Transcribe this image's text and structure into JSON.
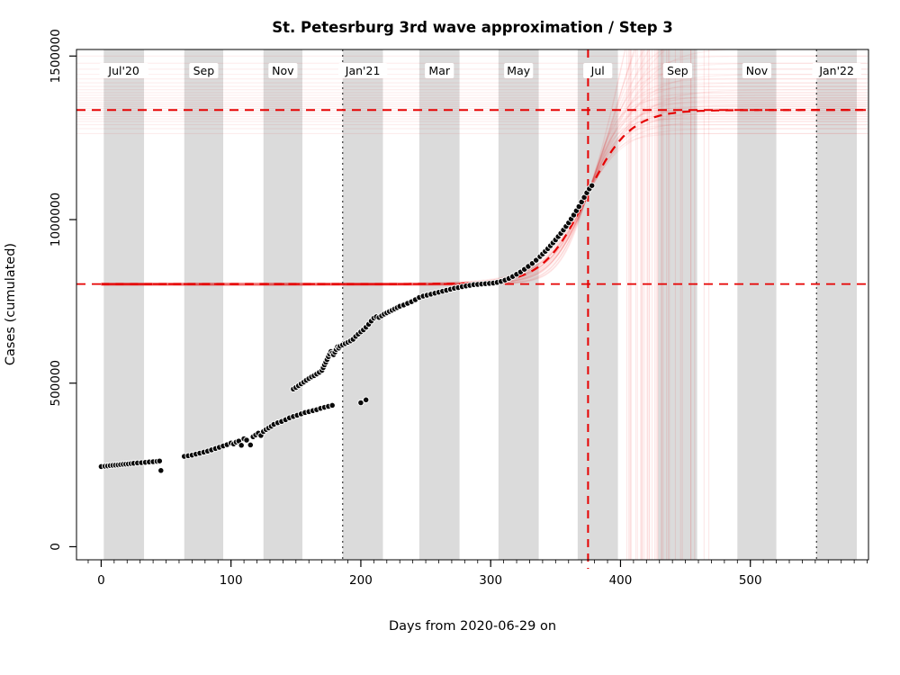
{
  "chart_data": {
    "type": "scatter",
    "title": "St. Petesrburg 3rd wave approximation / Step 3",
    "xlabel": "Days from 2020-06-29 on",
    "ylabel": "Cases (cumulated)",
    "xlim": [
      -19,
      591
    ],
    "ylim": [
      -40000,
      1520000
    ],
    "x_ticks": [
      0,
      100,
      200,
      300,
      400,
      500
    ],
    "x_minor_step": 10,
    "y_ticks": [
      0,
      500000,
      1000000,
      1500000
    ],
    "grid": false,
    "legend": "none",
    "month_bands": [
      {
        "label": "Jul'20",
        "start": 2,
        "end": 33
      },
      {
        "label": "Sep",
        "start": 64,
        "end": 94
      },
      {
        "label": "Nov",
        "start": 125,
        "end": 155
      },
      {
        "label": "Jan'21",
        "start": 186,
        "end": 217
      },
      {
        "label": "Mar",
        "start": 245,
        "end": 276
      },
      {
        "label": "May",
        "start": 306,
        "end": 337
      },
      {
        "label": "Jul",
        "start": 367,
        "end": 398
      },
      {
        "label": "Sep",
        "start": 429,
        "end": 459
      },
      {
        "label": "Nov",
        "start": 490,
        "end": 520
      },
      {
        "label": "Jan'22",
        "start": 551,
        "end": 582
      }
    ],
    "reference_lines": {
      "dotted_vertical_days": [
        186,
        551
      ],
      "current_day": 375,
      "lower_asymptote": 803000,
      "upper_asymptote": 1335000
    },
    "fit": {
      "anchor_day": 375,
      "anchor_cases": 1080000,
      "main": {
        "upper": 1335000,
        "rate": 0.06,
        "lower": 803000
      },
      "ensemble": [
        [
          1263000,
          0.078,
          801000
        ],
        [
          1278000,
          0.062,
          804000
        ],
        [
          1290000,
          0.085,
          800000
        ],
        [
          1300000,
          0.058,
          806000
        ],
        [
          1308000,
          0.092,
          802000
        ],
        [
          1315000,
          0.066,
          799000
        ],
        [
          1322000,
          0.074,
          805000
        ],
        [
          1328000,
          0.055,
          801000
        ],
        [
          1334000,
          0.088,
          803000
        ],
        [
          1340000,
          0.063,
          806000
        ],
        [
          1346000,
          0.071,
          800000
        ],
        [
          1352000,
          0.052,
          804000
        ],
        [
          1358000,
          0.08,
          802000
        ],
        [
          1365000,
          0.06,
          799000
        ],
        [
          1372000,
          0.09,
          805000
        ],
        [
          1380000,
          0.056,
          801000
        ],
        [
          1388000,
          0.07,
          803000
        ],
        [
          1397000,
          0.05,
          806000
        ],
        [
          1407000,
          0.076,
          800000
        ],
        [
          1418000,
          0.059,
          804000
        ],
        [
          1430000,
          0.067,
          802000
        ],
        [
          1444000,
          0.053,
          799000
        ],
        [
          1460000,
          0.072,
          805000
        ],
        [
          1478000,
          0.057,
          801000
        ],
        [
          1500000,
          0.064,
          803000
        ],
        [
          1525000,
          0.051,
          806000
        ],
        [
          1555000,
          0.061,
          800000
        ],
        [
          1590000,
          0.049,
          804000
        ],
        [
          1635000,
          0.058,
          802000
        ],
        [
          1690000,
          0.047,
          799000
        ],
        [
          1760000,
          0.054,
          805000
        ],
        [
          1850000,
          0.05,
          801000
        ],
        [
          1970000,
          0.046,
          803000
        ],
        [
          2130000,
          0.052,
          800000
        ],
        [
          2350000,
          0.048,
          802000
        ]
      ]
    },
    "series": [
      {
        "name": "cumulated cases",
        "points": [
          [
            0,
            245000
          ],
          [
            3,
            246000
          ],
          [
            5,
            247000
          ],
          [
            7,
            248000
          ],
          [
            9,
            249000
          ],
          [
            11,
            249500
          ],
          [
            13,
            250000
          ],
          [
            15,
            251000
          ],
          [
            17,
            252000
          ],
          [
            19,
            252500
          ],
          [
            21,
            253000
          ],
          [
            23,
            254000
          ],
          [
            25,
            255000
          ],
          [
            28,
            256000
          ],
          [
            31,
            257000
          ],
          [
            34,
            258000
          ],
          [
            37,
            259000
          ],
          [
            40,
            260000
          ],
          [
            43,
            261000
          ],
          [
            45,
            262000
          ],
          [
            46,
            233000
          ],
          [
            64,
            276000
          ],
          [
            67,
            278000
          ],
          [
            70,
            280000
          ],
          [
            73,
            283000
          ],
          [
            76,
            286000
          ],
          [
            79,
            289000
          ],
          [
            82,
            292000
          ],
          [
            85,
            296000
          ],
          [
            88,
            300000
          ],
          [
            91,
            304000
          ],
          [
            94,
            308000
          ],
          [
            97,
            312000
          ],
          [
            100,
            317000
          ],
          [
            102,
            314000
          ],
          [
            104,
            320000
          ],
          [
            106,
            323000
          ],
          [
            108,
            310000
          ],
          [
            110,
            330000
          ],
          [
            112,
            326000
          ],
          [
            115,
            311000
          ],
          [
            117,
            336000
          ],
          [
            119,
            342000
          ],
          [
            121,
            347000
          ],
          [
            123,
            340000
          ],
          [
            125,
            352000
          ],
          [
            127,
            358000
          ],
          [
            129,
            363000
          ],
          [
            131,
            368000
          ],
          [
            133,
            374000
          ],
          [
            136,
            379000
          ],
          [
            139,
            383000
          ],
          [
            142,
            388000
          ],
          [
            145,
            394000
          ],
          [
            148,
            398000
          ],
          [
            151,
            402000
          ],
          [
            154,
            406000
          ],
          [
            157,
            410000
          ],
          [
            160,
            413000
          ],
          [
            163,
            416000
          ],
          [
            166,
            419000
          ],
          [
            169,
            423000
          ],
          [
            172,
            426000
          ],
          [
            175,
            429000
          ],
          [
            178,
            432000
          ],
          [
            200,
            440000
          ],
          [
            204,
            449000
          ],
          [
            148,
            482000
          ],
          [
            150,
            487000
          ],
          [
            152,
            492000
          ],
          [
            154,
            498000
          ],
          [
            156,
            503000
          ],
          [
            158,
            509000
          ],
          [
            160,
            514000
          ],
          [
            162,
            519000
          ],
          [
            164,
            523000
          ],
          [
            166,
            528000
          ],
          [
            168,
            533000
          ],
          [
            170,
            539000
          ],
          [
            171,
            547000
          ],
          [
            172,
            556000
          ],
          [
            173,
            564000
          ],
          [
            174,
            572000
          ],
          [
            175,
            581000
          ],
          [
            176,
            589000
          ],
          [
            177,
            597000
          ],
          [
            178,
            592000
          ],
          [
            179,
            587000
          ],
          [
            180,
            595000
          ],
          [
            181,
            603000
          ],
          [
            182,
            611000
          ],
          [
            183,
            607000
          ],
          [
            184,
            613000
          ],
          [
            186,
            617000
          ],
          [
            188,
            621000
          ],
          [
            190,
            625000
          ],
          [
            192,
            629000
          ],
          [
            194,
            634000
          ],
          [
            196,
            643000
          ],
          [
            198,
            650000
          ],
          [
            200,
            657000
          ],
          [
            202,
            663000
          ],
          [
            204,
            671000
          ],
          [
            206,
            680000
          ],
          [
            208,
            690000
          ],
          [
            210,
            699000
          ],
          [
            212,
            703000
          ],
          [
            214,
            701000
          ],
          [
            216,
            706000
          ],
          [
            218,
            711000
          ],
          [
            220,
            715000
          ],
          [
            222,
            719000
          ],
          [
            224,
            723000
          ],
          [
            226,
            727000
          ],
          [
            228,
            731000
          ],
          [
            230,
            735000
          ],
          [
            233,
            739000
          ],
          [
            236,
            744000
          ],
          [
            239,
            749000
          ],
          [
            242,
            755000
          ],
          [
            245,
            762000
          ],
          [
            248,
            766000
          ],
          [
            251,
            769000
          ],
          [
            254,
            772000
          ],
          [
            257,
            775000
          ],
          [
            260,
            778000
          ],
          [
            263,
            781000
          ],
          [
            266,
            784000
          ],
          [
            269,
            787000
          ],
          [
            272,
            790000
          ],
          [
            275,
            792000
          ],
          [
            278,
            795000
          ],
          [
            281,
            797000
          ],
          [
            284,
            799000
          ],
          [
            287,
            801000
          ],
          [
            290,
            802000
          ],
          [
            293,
            803000
          ],
          [
            296,
            804000
          ],
          [
            299,
            805000
          ],
          [
            302,
            806000
          ],
          [
            305,
            808000
          ],
          [
            308,
            811000
          ],
          [
            311,
            815000
          ],
          [
            314,
            820000
          ],
          [
            317,
            826000
          ],
          [
            320,
            833000
          ],
          [
            323,
            840000
          ],
          [
            326,
            848000
          ],
          [
            329,
            857000
          ],
          [
            332,
            866000
          ],
          [
            335,
            876000
          ],
          [
            338,
            887000
          ],
          [
            340,
            895000
          ],
          [
            342,
            903000
          ],
          [
            344,
            911000
          ],
          [
            346,
            920000
          ],
          [
            348,
            929000
          ],
          [
            350,
            938000
          ],
          [
            352,
            948000
          ],
          [
            354,
            958000
          ],
          [
            356,
            968000
          ],
          [
            358,
            979000
          ],
          [
            360,
            990000
          ],
          [
            362,
            1002000
          ],
          [
            364,
            1014000
          ],
          [
            366,
            1027000
          ],
          [
            368,
            1040000
          ],
          [
            370,
            1054000
          ],
          [
            372,
            1068000
          ],
          [
            374,
            1082000
          ],
          [
            376,
            1094000
          ],
          [
            378,
            1104000
          ]
        ]
      }
    ],
    "colors": {
      "band": "#dbdbdb",
      "point": "#0a0a0a",
      "point_edge": "#ffffff",
      "red": "#e60000",
      "ensemble_curve": "rgba(230,0,0,0.055)",
      "faint_horizontal": "rgba(230,0,0,0.07)",
      "faint_vertical": "rgba(230,0,0,0.085)",
      "dotted_line": "#444444",
      "frame": "#000000"
    }
  }
}
